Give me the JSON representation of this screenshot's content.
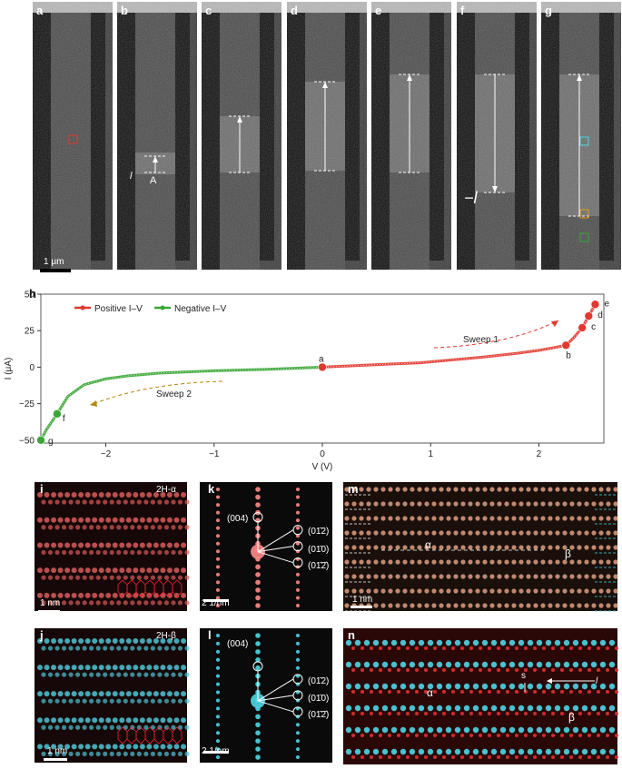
{
  "panels_top": [
    {
      "label": "a"
    },
    {
      "label": "b"
    },
    {
      "label": "c"
    },
    {
      "label": "d"
    },
    {
      "label": "e"
    },
    {
      "label": "f"
    },
    {
      "label": "g"
    }
  ],
  "panel_a": {
    "scalebar": "1 μm"
  },
  "panel_b": {
    "l_label": "l",
    "region_label": "A"
  },
  "panel_f": {
    "neg_l_label": "−l"
  },
  "chart_label": "h",
  "chart_data": {
    "type": "line",
    "title": "",
    "xlabel": "V (V)",
    "ylabel": "I (μA)",
    "xlim": [
      -2.6,
      2.6
    ],
    "ylim": [
      -52,
      50
    ],
    "xticks": [
      -2,
      -1,
      0,
      1,
      2
    ],
    "yticks": [
      -50,
      -25,
      0,
      25,
      50
    ],
    "legend_position": "top-left",
    "series": [
      {
        "name": "Positive I–V",
        "color": "#e0392f",
        "x": [
          0,
          0.3,
          0.6,
          0.9,
          1.2,
          1.5,
          1.8,
          2.0,
          2.15,
          2.25,
          2.32,
          2.4,
          2.46,
          2.52
        ],
        "y": [
          0,
          1,
          2,
          3,
          5,
          7,
          9.5,
          11.5,
          13.5,
          15,
          20,
          27,
          35,
          43
        ]
      },
      {
        "name": "Negative I–V",
        "color": "#3aa635",
        "x": [
          0,
          -0.5,
          -1.0,
          -1.5,
          -1.8,
          -2.0,
          -2.2,
          -2.35,
          -2.45,
          -2.55,
          -2.6
        ],
        "y": [
          0,
          -1.5,
          -2.5,
          -4,
          -6,
          -8,
          -12,
          -20,
          -32,
          -43,
          -50
        ]
      }
    ],
    "points": [
      {
        "label": "a",
        "x": 0,
        "y": 0,
        "color": "#e0392f"
      },
      {
        "label": "b",
        "x": 2.25,
        "y": 15,
        "color": "#e0392f"
      },
      {
        "label": "c",
        "x": 2.4,
        "y": 27,
        "color": "#e0392f"
      },
      {
        "label": "d",
        "x": 2.46,
        "y": 35,
        "color": "#e0392f"
      },
      {
        "label": "e",
        "x": 2.52,
        "y": 43,
        "color": "#e0392f"
      },
      {
        "label": "f",
        "x": -2.45,
        "y": -32,
        "color": "#3aa635"
      },
      {
        "label": "g",
        "x": -2.6,
        "y": -50,
        "color": "#3aa635"
      }
    ],
    "annotations": [
      "Sweep 1",
      "Sweep 2"
    ]
  },
  "panels_bottom": {
    "i": {
      "label": "i",
      "phase": "2H-α",
      "scalebar": "1 nm"
    },
    "j": {
      "label": "j",
      "phase": "2H-β",
      "scalebar": "1 nm"
    },
    "k": {
      "label": "k",
      "scalebar": "2 1/nm",
      "spots": [
        "(004)",
        "(01̄2)",
        "(01̄0)",
        "(01̄2̄)"
      ]
    },
    "l": {
      "label": "l",
      "scalebar": "2 1/nm",
      "spots": [
        "(004)",
        "(01̄2)",
        "(01̄0)",
        "(01̄2̄)"
      ]
    },
    "m": {
      "label": "m",
      "alpha": "α",
      "beta": "β",
      "scalebar": "1 nm"
    },
    "n": {
      "label": "n",
      "alpha": "α",
      "beta": "β",
      "s_label": "s",
      "l_label": "l"
    }
  },
  "colors": {
    "red": "#e0392f",
    "green": "#3aa635",
    "cyan": "#4fd6e6"
  }
}
